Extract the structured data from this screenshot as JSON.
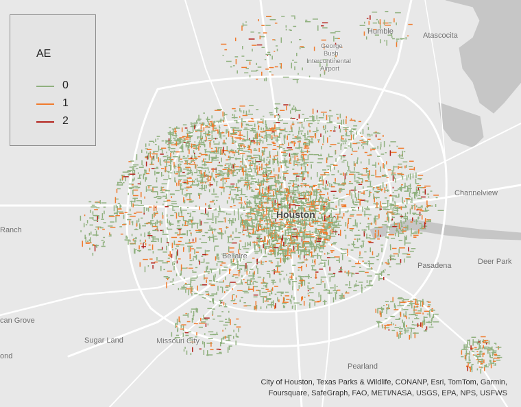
{
  "map": {
    "places": [
      {
        "id": "humble",
        "text": "Humble"
      },
      {
        "id": "atascocita",
        "text": "Atascocita"
      },
      {
        "id": "airport-1",
        "text": "George"
      },
      {
        "id": "airport-2",
        "text": "Bush"
      },
      {
        "id": "airport-3",
        "text": "Intercontinental"
      },
      {
        "id": "airport-4",
        "text": "Airport"
      },
      {
        "id": "channelview",
        "text": "Channelview"
      },
      {
        "id": "ranch",
        "text": "Ranch"
      },
      {
        "id": "houston",
        "text": "Houston"
      },
      {
        "id": "bellaire",
        "text": "Bellaire"
      },
      {
        "id": "pasadena",
        "text": "Pasadena"
      },
      {
        "id": "deer-park",
        "text": "Deer Park"
      },
      {
        "id": "can-grove",
        "text": "can Grove"
      },
      {
        "id": "sugar-land",
        "text": "Sugar Land"
      },
      {
        "id": "missouri-city",
        "text": "Missouri City"
      },
      {
        "id": "ond",
        "text": "ond"
      },
      {
        "id": "pearland",
        "text": "Pearland"
      }
    ],
    "colors": {
      "background": "#e8e8e8",
      "water": "#c4c4c4",
      "roads": "#ffffff",
      "ae_0": "#8fb07e",
      "ae_1": "#f07a2c",
      "ae_2": "#b3221c"
    }
  },
  "legend": {
    "title": "AE",
    "items": [
      {
        "label": "0",
        "color": "#8fb07e"
      },
      {
        "label": "1",
        "color": "#f07a2c"
      },
      {
        "label": "2",
        "color": "#b3221c"
      }
    ]
  },
  "attribution": {
    "line1": "City of Houston, Texas Parks & Wildlife, CONANP, Esri, TomTom, Garmin,",
    "line2": "Foursquare, SafeGraph, FAO, METI/NASA, USGS, EPA, NPS, USFWS"
  }
}
